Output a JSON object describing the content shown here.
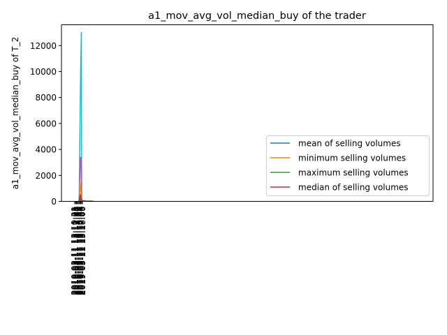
{
  "chart_data": {
    "type": "line",
    "title": "a1_mov_avg_vol_median_buy of the trader",
    "xlabel": "",
    "ylabel": "a1_mov_avg_vol_median_buy of T_2",
    "ylim": [
      0,
      13600
    ],
    "yticks": [
      0,
      2000,
      4000,
      6000,
      8000,
      10000,
      12000
    ],
    "ytick_labels": [
      "0",
      "2000",
      "4000",
      "6000",
      "8000",
      "10000",
      "12000"
    ],
    "xtick_labels": [
      "2019-03-11 13:10:21",
      "2019-03-11 13:11:05",
      "2019-03-11 13:12:48",
      "2019-03-11 13:13:30",
      "2019-03-11 13:14:16",
      "2019-03-11 13:15:02",
      "2019-03-11 13:15:44",
      "2019-03-11 13:16:27",
      "2019-03-11 13:17:09",
      "2019-03-11 13:18:00"
    ],
    "grid": false,
    "legend_position": "lower-right",
    "legend": [
      {
        "label": "mean of selling volumes",
        "color": "#1f77b4"
      },
      {
        "label": "minimum selling volumes",
        "color": "#ff7f0e"
      },
      {
        "label": "maximum selling volumes",
        "color": "#2ca02c"
      },
      {
        "label": "median of selling volumes",
        "color": "#d62728"
      }
    ],
    "series": [
      {
        "color": "#17becf",
        "x": [
          0.0,
          0.02,
          0.05,
          0.09,
          0.13,
          0.17,
          0.2
        ],
        "y": [
          0,
          600,
          3500,
          7000,
          10500,
          13000,
          0
        ]
      },
      {
        "color": "#9467bd",
        "x": [
          0.0,
          0.05,
          0.11,
          0.16,
          0.2
        ],
        "y": [
          0,
          700,
          3400,
          3300,
          0
        ]
      },
      {
        "color": "#ff7f0e",
        "x": [
          0.0,
          0.04,
          0.08,
          0.12,
          0.16,
          0.2,
          0.6,
          0.85,
          1.1
        ],
        "y": [
          0,
          400,
          1500,
          1100,
          500,
          80,
          20,
          40,
          0
        ]
      },
      {
        "color": "#1f77b4",
        "x": [
          0.0,
          0.08,
          0.14,
          0.2,
          0.6,
          1.0
        ],
        "y": [
          0,
          250,
          350,
          60,
          15,
          0
        ]
      },
      {
        "color": "#2ca02c",
        "x": [
          0.0,
          0.1,
          0.2,
          0.8
        ],
        "y": [
          0,
          150,
          40,
          0
        ]
      },
      {
        "color": "#d62728",
        "x": [
          0.0,
          0.1,
          0.15,
          0.2
        ],
        "y": [
          0,
          520,
          200,
          0
        ]
      },
      {
        "color": "#8c564b",
        "x": [
          0.0,
          0.1,
          0.2
        ],
        "y": [
          0,
          90,
          0
        ]
      }
    ]
  }
}
